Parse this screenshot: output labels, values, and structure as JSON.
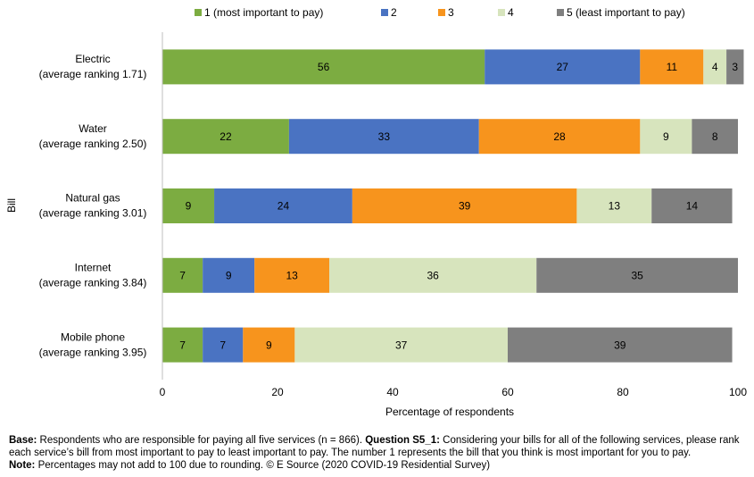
{
  "chart_data": {
    "type": "stacked-barh",
    "categories": [
      [
        "Electric",
        "(average ranking 1.71)"
      ],
      [
        "Water",
        "(average ranking 2.50)"
      ],
      [
        "Natural gas",
        "(average ranking 3.01)"
      ],
      [
        "Internet",
        "(average ranking 3.84)"
      ],
      [
        "Mobile phone",
        "(average ranking 3.95)"
      ]
    ],
    "series": [
      {
        "name": "1 (most important to pay)",
        "color": "#7cac41",
        "values": [
          56,
          22,
          9,
          7,
          7
        ]
      },
      {
        "name": "2",
        "color": "#4a73c2",
        "values": [
          27,
          33,
          24,
          9,
          7
        ]
      },
      {
        "name": "3",
        "color": "#f7941d",
        "values": [
          11,
          28,
          39,
          13,
          9
        ]
      },
      {
        "name": "4",
        "color": "#d7e4bd",
        "values": [
          4,
          9,
          13,
          36,
          37
        ]
      },
      {
        "name": "5 (least important to pay)",
        "color": "#7f7f7f",
        "values": [
          3,
          8,
          14,
          35,
          39
        ]
      }
    ],
    "xlim": [
      0,
      100
    ],
    "xticks": [
      0,
      20,
      40,
      60,
      80,
      100
    ],
    "xlabel": "Percentage of respondents",
    "ylabel": "Bill",
    "grid": false,
    "legend": "top"
  },
  "notes": [
    [
      {
        "label": "Base:",
        "text": " Respondents who are responsible for paying all five services (n = 866). "
      },
      {
        "label": "Question S5_1:",
        "text": " Considering your bills for all of the following services, please rank each service’s bill from most important to pay to least important to pay. The number 1 represents the bill that you think is most important for you to pay."
      }
    ],
    [
      {
        "label": "Note:",
        "text": " Percentages may not add to 100 due to rounding. © E Source (2020 COVID-19 Residential Survey)"
      }
    ]
  ]
}
